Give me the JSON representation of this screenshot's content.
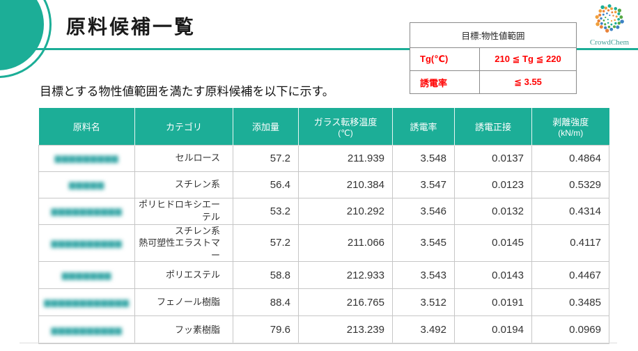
{
  "page": {
    "title": "原料候補一覧",
    "subtitle": "目標とする物性値範囲を満たす原料候補を以下に示す。"
  },
  "colors": {
    "brand_teal": "#1cae97",
    "alert_red": "#ff0000",
    "masked_link_teal": "#35a6a6"
  },
  "logo": {
    "text": "CrowdChem",
    "dot_colors": [
      "#e8833a",
      "#3b82c4",
      "#56a944",
      "#1cae97",
      "#f0a03c"
    ]
  },
  "target_box": {
    "header": "目標:物性値範囲",
    "rows": [
      {
        "label": "Tg(℃)",
        "value": "210 ≦ Tg ≦ 220"
      },
      {
        "label": "誘電率",
        "value": "≦ 3.55"
      }
    ]
  },
  "table": {
    "headers": [
      {
        "t": "原料名",
        "s": ""
      },
      {
        "t": "カテゴリ",
        "s": ""
      },
      {
        "t": "添加量",
        "s": ""
      },
      {
        "t": "ガラス転移温度",
        "s": "(℃)"
      },
      {
        "t": "誘電率",
        "s": ""
      },
      {
        "t": "誘電正接",
        "s": ""
      },
      {
        "t": "剥離強度",
        "s": "(kN/m)"
      }
    ],
    "rows": [
      {
        "name_masked": "▆▆▆▆▆▆▆▆▆",
        "category": "セルロース",
        "addition": "57.2",
        "tg": "211.939",
        "dielectric": "3.548",
        "tan_delta": "0.0137",
        "peel": "0.4864"
      },
      {
        "name_masked": "▆▆▆▆▆",
        "category": "スチレン系",
        "addition": "56.4",
        "tg": "210.384",
        "dielectric": "3.547",
        "tan_delta": "0.0123",
        "peel": "0.5329"
      },
      {
        "name_masked": "▆▆▆▆▆▆▆▆▆▆",
        "category": "ポリヒドロキシエーテル",
        "addition": "53.2",
        "tg": "210.292",
        "dielectric": "3.546",
        "tan_delta": "0.0132",
        "peel": "0.4314"
      },
      {
        "name_masked": "▆▆▆▆▆▆▆▆▆▆",
        "category": "スチレン系\n熱可塑性エラストマー",
        "addition": "57.2",
        "tg": "211.066",
        "dielectric": "3.545",
        "tan_delta": "0.0145",
        "peel": "0.4117"
      },
      {
        "name_masked": "▆▆▆▆▆▆▆",
        "category": "ポリエステル",
        "addition": "58.8",
        "tg": "212.933",
        "dielectric": "3.543",
        "tan_delta": "0.0143",
        "peel": "0.4467"
      },
      {
        "name_masked": "▆▆▆▆▆▆▆▆▆▆▆▆",
        "category": "フェノール樹脂",
        "addition": "88.4",
        "tg": "216.765",
        "dielectric": "3.512",
        "tan_delta": "0.0191",
        "peel": "0.3485"
      },
      {
        "name_masked": "▆▆▆▆▆▆▆▆▆▆",
        "category": "フッ素樹脂",
        "addition": "79.6",
        "tg": "213.239",
        "dielectric": "3.492",
        "tan_delta": "0.0194",
        "peel": "0.0969"
      }
    ]
  }
}
